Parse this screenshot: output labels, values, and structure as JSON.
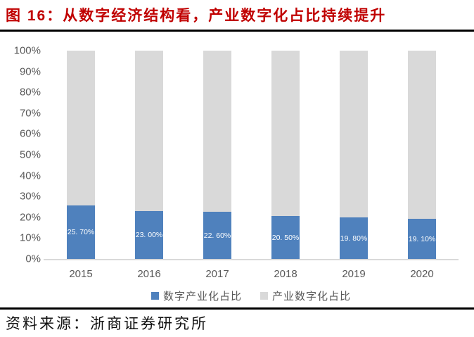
{
  "figure": {
    "title": "图 16：从数字经济结构看，产业数字化占比持续提升",
    "source": "资料来源：浙商证券研究所"
  },
  "colors": {
    "title_red": "#C00000",
    "series_blue": "#4F81BD",
    "series_gray": "#D9D9D9",
    "tick_text": "#595959",
    "axis_line": "#D9D9D9",
    "rule_black": "#000000",
    "bar_label_text": "#FFFFFF"
  },
  "chart_data": {
    "type": "bar",
    "subtype": "stacked-100-percent",
    "categories": [
      "2015",
      "2016",
      "2017",
      "2018",
      "2019",
      "2020"
    ],
    "series": [
      {
        "name": "数字产业化占比",
        "color": "#4F81BD",
        "values": [
          25.7,
          23.0,
          22.6,
          20.5,
          19.8,
          19.1
        ],
        "data_labels": [
          "25. 70%",
          "23. 00%",
          "22. 60%",
          "20. 50%",
          "19. 80%",
          "19. 10%"
        ]
      },
      {
        "name": "产业数字化占比",
        "color": "#D9D9D9",
        "values": [
          74.3,
          77.0,
          77.4,
          79.5,
          80.2,
          80.9
        ],
        "data_labels": [
          "",
          "",
          "",
          "",
          "",
          ""
        ]
      }
    ],
    "title": "",
    "xlabel": "",
    "ylabel": "",
    "ylim": [
      0,
      100
    ],
    "yticks_top_to_bottom": [
      "100%",
      "90%",
      "80%",
      "70%",
      "60%",
      "50%",
      "40%",
      "30%",
      "20%",
      "10%",
      "0%"
    ],
    "grid": false,
    "legend_position": "bottom"
  }
}
